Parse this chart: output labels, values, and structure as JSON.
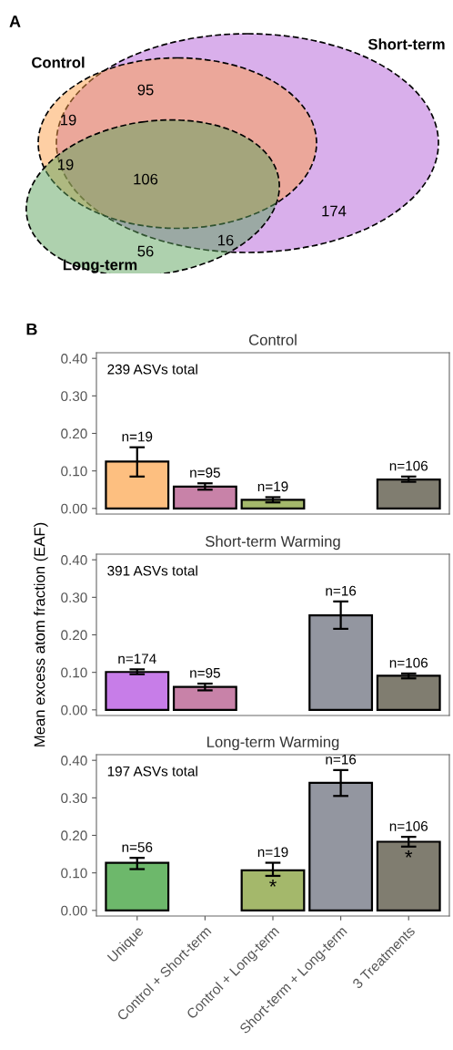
{
  "chart_data": [
    {
      "type": "other",
      "title": "A",
      "annotations": [
        "Control",
        "Short-term",
        "Long-term",
        "19",
        "95",
        "19",
        "106",
        "56",
        "16",
        "174"
      ]
    },
    {
      "type": "bar",
      "title": "Control",
      "categories": [
        "Unique",
        "Control + Short-term",
        "Control + Long-term",
        "Short-term + Long-term",
        "3 Treatments"
      ],
      "values": [
        0.125,
        0.058,
        0.023,
        null,
        0.077
      ],
      "colors": [
        "#fdbf80",
        "#c882a8",
        "#a4b86b",
        "#9396a0",
        "#807d70"
      ],
      "errors": [
        [
          0.085,
          0.163
        ],
        [
          0.05,
          0.067
        ],
        [
          0.016,
          0.03
        ],
        null,
        [
          0.071,
          0.085
        ]
      ],
      "annotations": [
        "B",
        "239 ASVs total",
        {
          "text": "n=19",
          "x": "Unique",
          "y": 0.125
        },
        {
          "text": "n=95",
          "x": "Control + Short-term",
          "y": 0.058
        },
        {
          "text": "n=19",
          "x": "Control + Long-term",
          "y": 0.023
        },
        {
          "text": "n=106",
          "x": "3 Treatments",
          "y": 0.077
        }
      ],
      "ylim": [
        -0.015,
        0.415
      ],
      "yticks": [
        {
          "value": 0,
          "label": "0.00"
        },
        {
          "value": 0.1,
          "label": "0.10"
        },
        {
          "value": 0.2,
          "label": "0.20"
        },
        {
          "value": 0.3,
          "label": "0.30"
        },
        {
          "value": 0.4,
          "label": "0.40"
        }
      ],
      "tick_labels": "y"
    },
    {
      "type": "bar",
      "title": "Short-term Warming",
      "ylabel": "Mean excess atom fraction (EAF)",
      "categories": [
        "Unique",
        "Control + Short-term",
        "Control + Long-term",
        "Short-term + Long-term",
        "3 Treatments"
      ],
      "values": [
        0.101,
        0.061,
        null,
        0.252,
        0.091
      ],
      "colors": [
        "#c77de8",
        "#c882a8",
        "#a4b86b",
        "#9396a0",
        "#807d70"
      ],
      "errors": [
        [
          0.095,
          0.108
        ],
        [
          0.052,
          0.07
        ],
        null,
        [
          0.216,
          0.289
        ],
        [
          0.084,
          0.097
        ]
      ],
      "annotations": [
        "391 ASVs total",
        {
          "text": "n=174",
          "x": "Unique",
          "y": 0.101
        },
        {
          "text": "n=95",
          "x": "Control + Short-term",
          "y": 0.061
        },
        {
          "text": "n=16",
          "x": "Short-term + Long-term",
          "y": 0.252
        },
        {
          "text": "n=106",
          "x": "3 Treatments",
          "y": 0.091
        }
      ],
      "ylim": [
        -0.015,
        0.415
      ],
      "yticks": [
        {
          "value": 0,
          "label": "0.00"
        },
        {
          "value": 0.1,
          "label": "0.10"
        },
        {
          "value": 0.2,
          "label": "0.20"
        },
        {
          "value": 0.3,
          "label": "0.30"
        },
        {
          "value": 0.4,
          "label": "0.40"
        }
      ],
      "tick_labels": "y"
    },
    {
      "type": "bar",
      "title": "Long-term Warming",
      "categories": [
        "Unique",
        "Control + Short-term",
        "Control + Long-term",
        "Short-term + Long-term",
        "3 Treatments"
      ],
      "values": [
        0.127,
        null,
        0.107,
        0.34,
        0.183
      ],
      "colors": [
        "#6db86b",
        "#c882a8",
        "#a4b86b",
        "#9396a0",
        "#807d70"
      ],
      "errors": [
        [
          0.11,
          0.14
        ],
        null,
        [
          0.092,
          0.127
        ],
        [
          0.305,
          0.374
        ],
        [
          0.17,
          0.196
        ]
      ],
      "annotations": [
        "197 ASVs total",
        {
          "text": "n=56",
          "x": "Unique",
          "y": 0.127
        },
        {
          "text": "n=19",
          "x": "Control + Long-term",
          "y": 0.107
        },
        {
          "text": "n=16",
          "x": "Short-term + Long-term",
          "y": 0.34
        },
        {
          "text": "n=106",
          "x": "3 Treatments",
          "y": 0.183
        },
        {
          "text": "*",
          "x": "Control + Long-term",
          "y": 0.107
        },
        {
          "text": "*",
          "x": "3 Treatments",
          "y": 0.183
        }
      ],
      "ylim": [
        -0.015,
        0.415
      ],
      "yticks": [
        {
          "value": 0,
          "label": "0.00"
        },
        {
          "value": 0.1,
          "label": "0.10"
        },
        {
          "value": 0.2,
          "label": "0.20"
        },
        {
          "value": 0.3,
          "label": "0.30"
        },
        {
          "value": 0.4,
          "label": "0.40"
        }
      ]
    }
  ]
}
